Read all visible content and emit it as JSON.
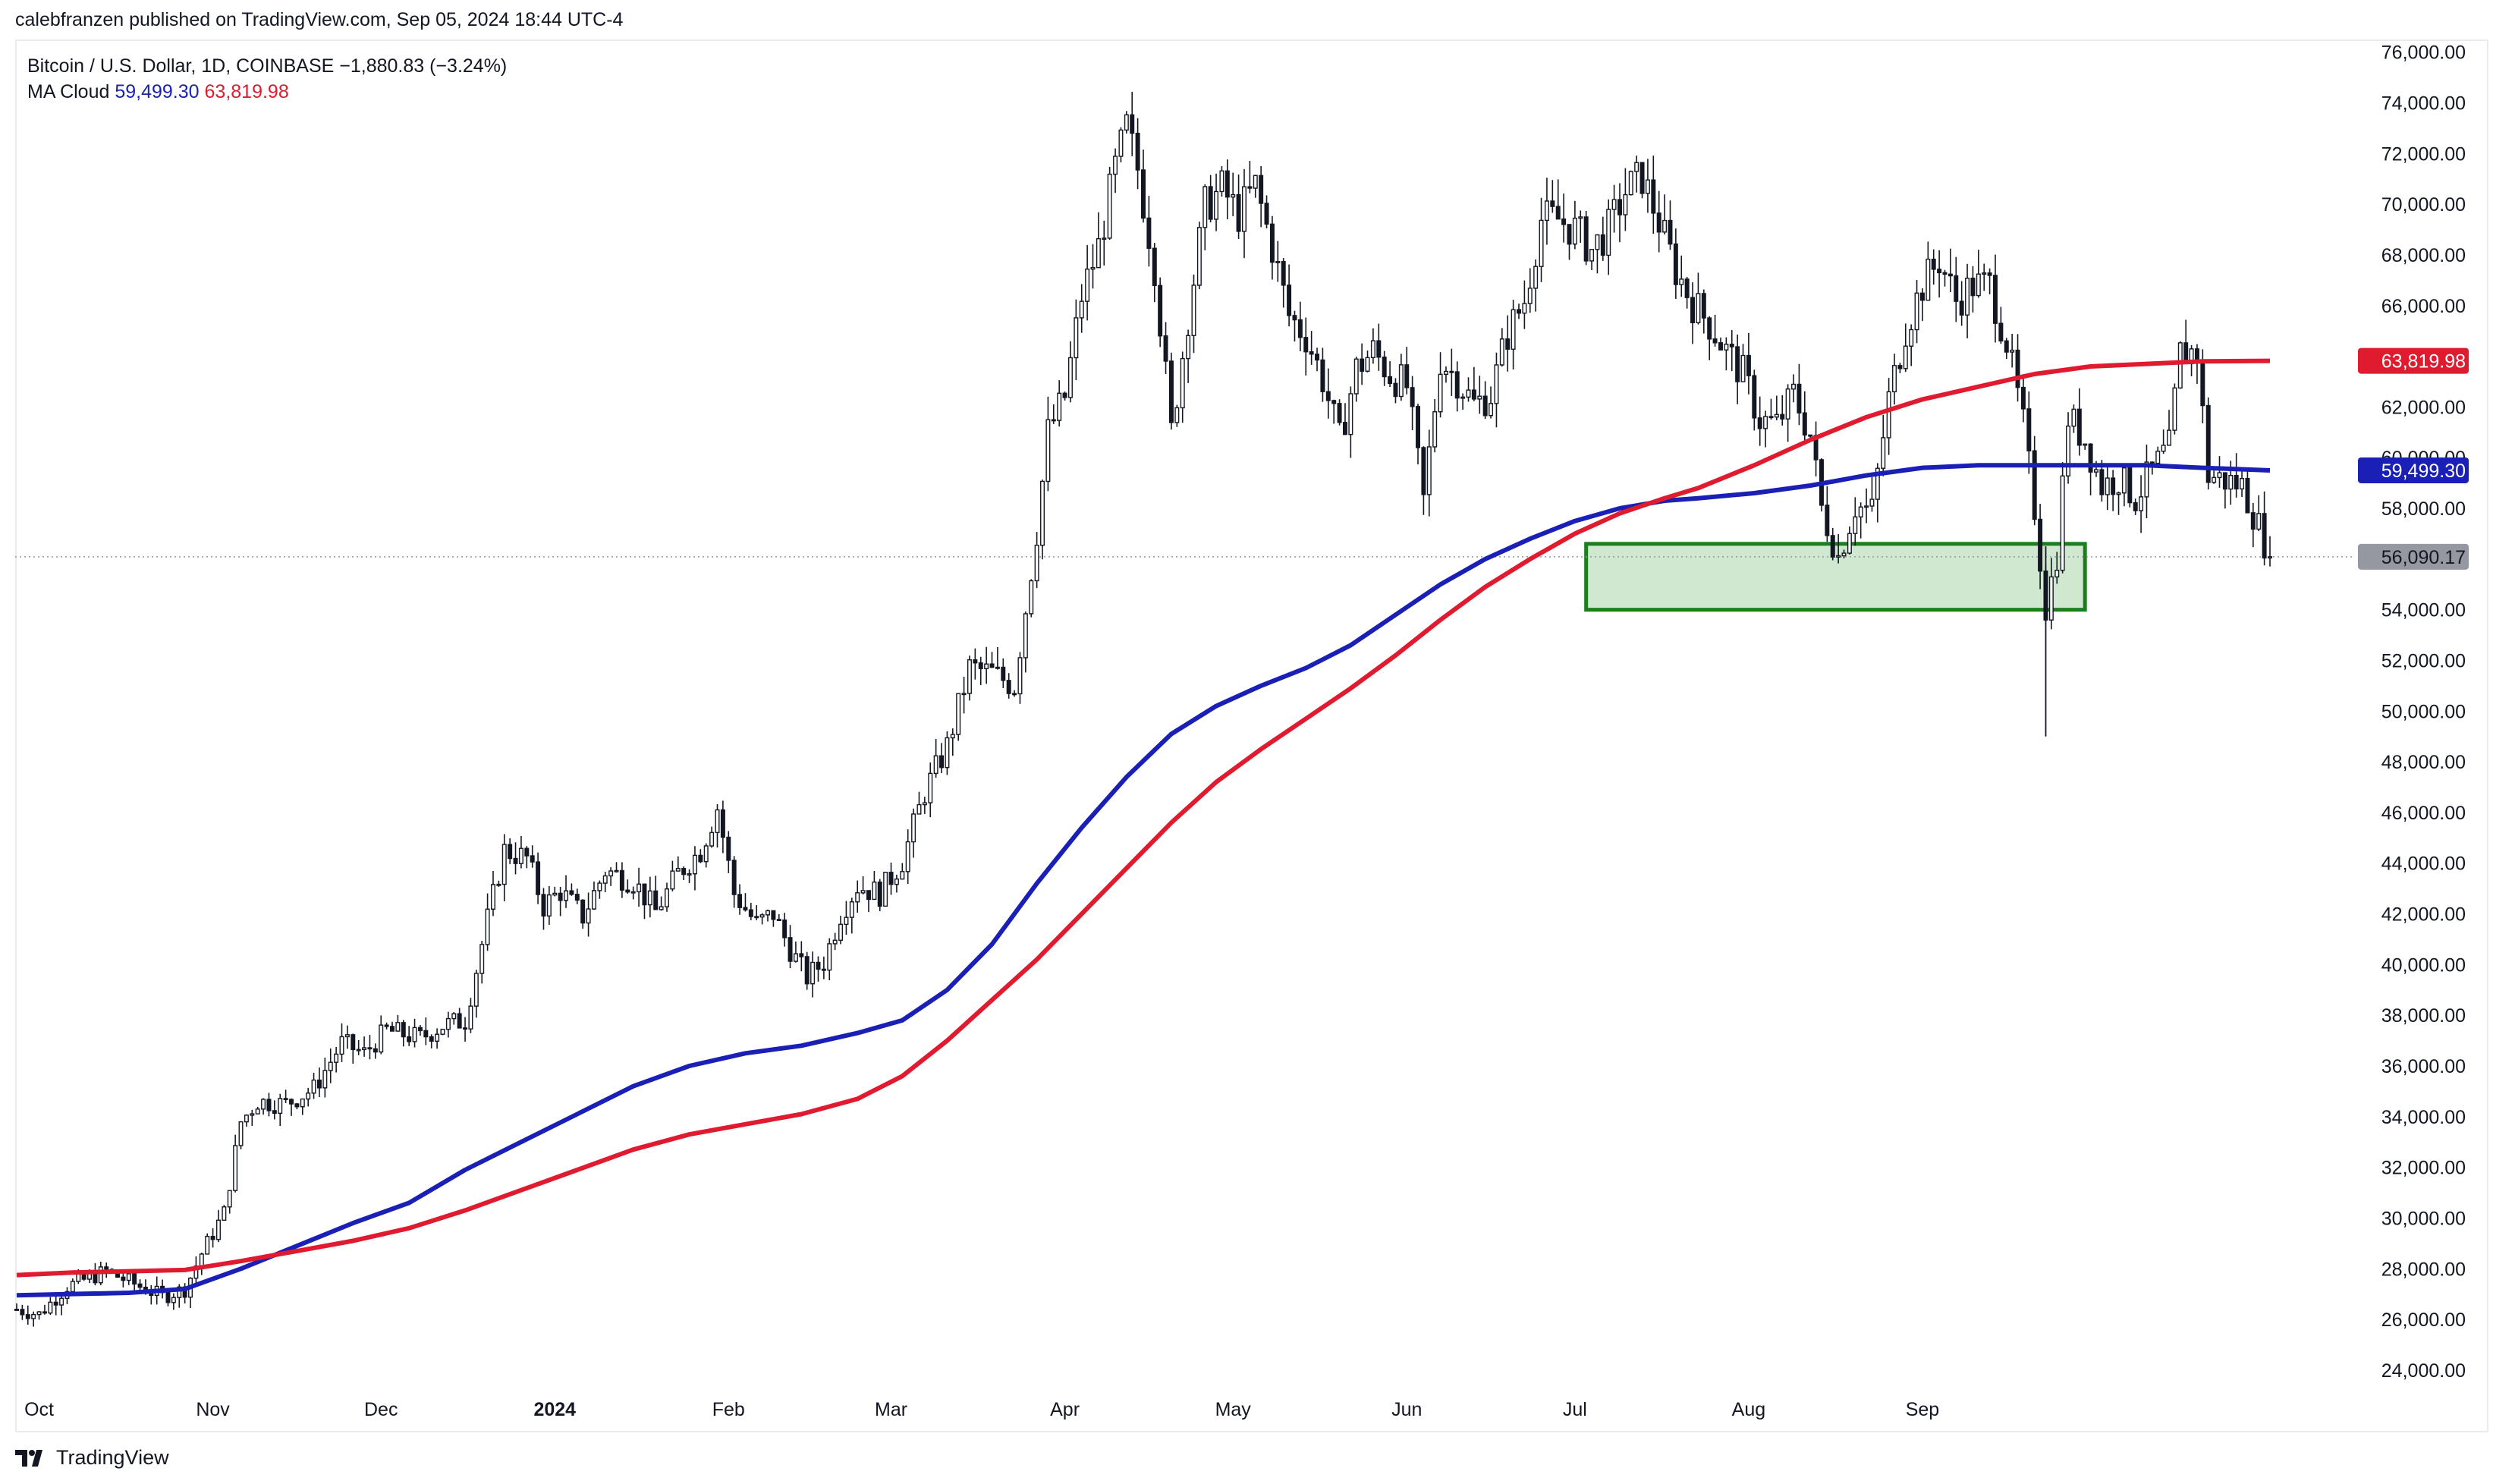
{
  "header": {
    "published_line": "calebfranzen published on TradingView.com, Sep 05, 2024 18:44 UTC-4"
  },
  "legend": {
    "symbol_line": "Bitcoin / U.S. Dollar, 1D, COINBASE",
    "change": "−1,880.83 (−3.24%)",
    "indicator": "MA Cloud",
    "ma_fast_value": "59,499.30",
    "ma_slow_value": "63,819.98"
  },
  "footer": {
    "brand": "TradingView"
  },
  "colors": {
    "ma_fast": "#1a1fb5",
    "ma_slow": "#e01b2f",
    "support_zone_fill": "#cfe8cf",
    "support_zone_border": "#1e7d1e",
    "candle": "#131722",
    "price_badge": "#9598a1"
  },
  "chart_data": {
    "type": "candlestick",
    "title": "Bitcoin / U.S. Dollar, 1D, COINBASE",
    "x_axis": {
      "ticks": [
        "Oct",
        "Nov",
        "Dec",
        "2024",
        "Feb",
        "Mar",
        "Apr",
        "May",
        "Jun",
        "Jul",
        "Aug",
        "Sep"
      ],
      "range": [
        "2023-09-27",
        "2024-09-30"
      ]
    },
    "y_axis": {
      "min": 22500,
      "max": 76500,
      "ticks": [
        76000,
        74000,
        72000,
        70000,
        68000,
        66000,
        64000,
        62000,
        60000,
        58000,
        56000,
        54000,
        52000,
        50000,
        48000,
        46000,
        44000,
        42000,
        40000,
        38000,
        36000,
        34000,
        32000,
        30000,
        28000,
        26000,
        24000
      ],
      "tick_labels": [
        "76,000.00",
        "74,000.00",
        "72,000.00",
        "70,000.00",
        "68,000.00",
        "66,000.00",
        "64,000.00",
        "62,000.00",
        "60,000.00",
        "58,000.00",
        "56,000.00",
        "54,000.00",
        "52,000.00",
        "50,000.00",
        "48,000.00",
        "46,000.00",
        "44,000.00",
        "42,000.00",
        "40,000.00",
        "38,000.00",
        "36,000.00",
        "34,000.00",
        "32,000.00",
        "30,000.00",
        "28,000.00",
        "26,000.00",
        "24,000.00"
      ]
    },
    "price_badges": [
      {
        "label": "63,819.98",
        "value": 63819.98,
        "color": "#e01b2f"
      },
      {
        "label": "59,499.30",
        "value": 59499.3,
        "color": "#1a1fb5"
      },
      {
        "label": "56,090.17",
        "value": 56090.17,
        "color": "#9598a1"
      }
    ],
    "last_price": 56090.17,
    "support_zone": {
      "from_day": 280,
      "to_day": 369,
      "low": 54000,
      "high": 56600
    },
    "close_path_keypoints": [
      [
        0,
        26400
      ],
      [
        4,
        26200
      ],
      [
        9,
        27300
      ],
      [
        16,
        27900
      ],
      [
        22,
        27300
      ],
      [
        26,
        26900
      ],
      [
        30,
        27200
      ],
      [
        33,
        28600
      ],
      [
        37,
        30200
      ],
      [
        40,
        33800
      ],
      [
        43,
        34600
      ],
      [
        48,
        34500
      ],
      [
        53,
        35100
      ],
      [
        58,
        36900
      ],
      [
        62,
        36500
      ],
      [
        66,
        37400
      ],
      [
        72,
        37100
      ],
      [
        76,
        37600
      ],
      [
        80,
        37800
      ],
      [
        84,
        41800
      ],
      [
        87,
        44500
      ],
      [
        91,
        44200
      ],
      [
        94,
        42300
      ],
      [
        97,
        42900
      ],
      [
        101,
        41900
      ],
      [
        105,
        43700
      ],
      [
        110,
        43300
      ],
      [
        114,
        42100
      ],
      [
        118,
        43600
      ],
      [
        122,
        44500
      ],
      [
        125,
        46200
      ],
      [
        128,
        42800
      ],
      [
        132,
        41600
      ],
      [
        135,
        42000
      ],
      [
        138,
        40600
      ],
      [
        141,
        39500
      ],
      [
        144,
        40100
      ],
      [
        147,
        42000
      ],
      [
        150,
        43100
      ],
      [
        154,
        42800
      ],
      [
        158,
        44100
      ],
      [
        162,
        46800
      ],
      [
        166,
        48600
      ],
      [
        170,
        51700
      ],
      [
        174,
        51500
      ],
      [
        178,
        51000
      ],
      [
        182,
        57100
      ],
      [
        184,
        61000
      ],
      [
        187,
        62400
      ],
      [
        190,
        66400
      ],
      [
        193,
        68300
      ],
      [
        196,
        71400
      ],
      [
        198,
        73000
      ],
      [
        200,
        71400
      ],
      [
        203,
        67600
      ],
      [
        206,
        61000
      ],
      [
        209,
        65600
      ],
      [
        212,
        69900
      ],
      [
        215,
        70600
      ],
      [
        218,
        69600
      ],
      [
        221,
        70700
      ],
      [
        224,
        68300
      ],
      [
        227,
        65600
      ],
      [
        230,
        64800
      ],
      [
        233,
        63100
      ],
      [
        236,
        60700
      ],
      [
        239,
        63500
      ],
      [
        242,
        64200
      ],
      [
        245,
        63300
      ],
      [
        248,
        62800
      ],
      [
        251,
        58300
      ],
      [
        254,
        63900
      ],
      [
        257,
        63100
      ],
      [
        260,
        62100
      ],
      [
        263,
        62500
      ],
      [
        266,
        64900
      ],
      [
        269,
        66200
      ],
      [
        272,
        69400
      ],
      [
        275,
        69400
      ],
      [
        278,
        69000
      ],
      [
        281,
        68200
      ],
      [
        284,
        69000
      ],
      [
        287,
        70500
      ],
      [
        290,
        71100
      ],
      [
        293,
        69300
      ],
      [
        296,
        67400
      ],
      [
        299,
        66100
      ],
      [
        302,
        65300
      ],
      [
        305,
        64200
      ],
      [
        308,
        63300
      ],
      [
        311,
        61500
      ],
      [
        314,
        61300
      ],
      [
        317,
        62500
      ],
      [
        320,
        60900
      ],
      [
        322,
        58000
      ],
      [
        325,
        56100
      ],
      [
        328,
        58100
      ],
      [
        331,
        57900
      ],
      [
        334,
        62300
      ],
      [
        337,
        65100
      ],
      [
        340,
        66800
      ],
      [
        343,
        67800
      ],
      [
        346,
        66200
      ],
      [
        349,
        66800
      ],
      [
        352,
        66800
      ],
      [
        355,
        64600
      ],
      [
        358,
        61300
      ],
      [
        360,
        58000
      ],
      [
        362,
        54100
      ],
      [
        364,
        56200
      ],
      [
        366,
        61600
      ],
      [
        369,
        60700
      ],
      [
        372,
        58900
      ],
      [
        375,
        59200
      ],
      [
        378,
        58400
      ],
      [
        381,
        59500
      ],
      [
        384,
        60400
      ],
      [
        386,
        64100
      ],
      [
        389,
        64200
      ],
      [
        391,
        59300
      ],
      [
        394,
        59100
      ],
      [
        397,
        58900
      ],
      [
        400,
        57300
      ],
      [
        402,
        56090
      ]
    ],
    "series": [
      {
        "name": "MA Cloud fast",
        "color": "#1a1fb5",
        "points": [
          [
            0,
            26950
          ],
          [
            20,
            27050
          ],
          [
            30,
            27200
          ],
          [
            40,
            28000
          ],
          [
            50,
            28900
          ],
          [
            60,
            29800
          ],
          [
            70,
            30600
          ],
          [
            80,
            31900
          ],
          [
            90,
            33000
          ],
          [
            100,
            34100
          ],
          [
            110,
            35200
          ],
          [
            120,
            36000
          ],
          [
            130,
            36500
          ],
          [
            140,
            36800
          ],
          [
            150,
            37300
          ],
          [
            158,
            37800
          ],
          [
            166,
            39000
          ],
          [
            174,
            40800
          ],
          [
            182,
            43200
          ],
          [
            190,
            45400
          ],
          [
            198,
            47400
          ],
          [
            206,
            49100
          ],
          [
            214,
            50200
          ],
          [
            222,
            51000
          ],
          [
            230,
            51700
          ],
          [
            238,
            52600
          ],
          [
            246,
            53800
          ],
          [
            254,
            55000
          ],
          [
            262,
            56000
          ],
          [
            270,
            56800
          ],
          [
            278,
            57500
          ],
          [
            286,
            58000
          ],
          [
            294,
            58300
          ],
          [
            300,
            58400
          ],
          [
            310,
            58600
          ],
          [
            320,
            58900
          ],
          [
            330,
            59300
          ],
          [
            340,
            59600
          ],
          [
            350,
            59700
          ],
          [
            360,
            59700
          ],
          [
            370,
            59700
          ],
          [
            380,
            59700
          ],
          [
            390,
            59600
          ],
          [
            402,
            59499
          ]
        ]
      },
      {
        "name": "MA Cloud slow",
        "color": "#e01b2f",
        "points": [
          [
            0,
            27750
          ],
          [
            10,
            27850
          ],
          [
            20,
            27900
          ],
          [
            30,
            27950
          ],
          [
            40,
            28300
          ],
          [
            50,
            28700
          ],
          [
            60,
            29100
          ],
          [
            70,
            29600
          ],
          [
            80,
            30300
          ],
          [
            90,
            31100
          ],
          [
            100,
            31900
          ],
          [
            110,
            32700
          ],
          [
            120,
            33300
          ],
          [
            130,
            33700
          ],
          [
            140,
            34100
          ],
          [
            150,
            34700
          ],
          [
            158,
            35600
          ],
          [
            166,
            37000
          ],
          [
            174,
            38600
          ],
          [
            182,
            40200
          ],
          [
            190,
            42000
          ],
          [
            198,
            43800
          ],
          [
            206,
            45600
          ],
          [
            214,
            47200
          ],
          [
            222,
            48500
          ],
          [
            230,
            49700
          ],
          [
            238,
            50900
          ],
          [
            246,
            52200
          ],
          [
            254,
            53600
          ],
          [
            262,
            54900
          ],
          [
            270,
            56000
          ],
          [
            278,
            57000
          ],
          [
            286,
            57800
          ],
          [
            294,
            58400
          ],
          [
            300,
            58800
          ],
          [
            310,
            59700
          ],
          [
            320,
            60700
          ],
          [
            330,
            61600
          ],
          [
            340,
            62300
          ],
          [
            350,
            62800
          ],
          [
            360,
            63300
          ],
          [
            370,
            63600
          ],
          [
            380,
            63700
          ],
          [
            390,
            63800
          ],
          [
            402,
            63820
          ]
        ]
      }
    ]
  }
}
